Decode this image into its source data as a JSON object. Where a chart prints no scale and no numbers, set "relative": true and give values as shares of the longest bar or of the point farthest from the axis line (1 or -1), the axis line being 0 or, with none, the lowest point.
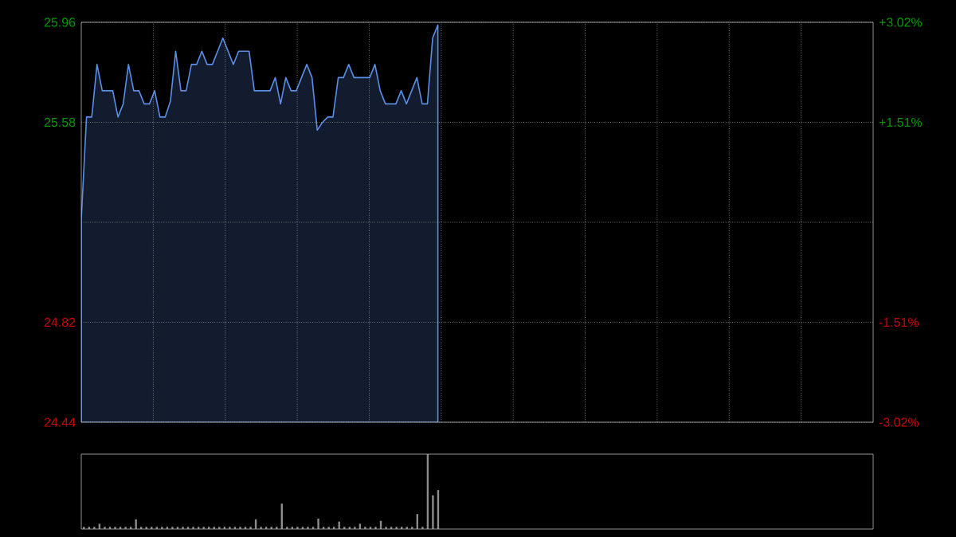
{
  "chart_data": [
    {
      "type": "area",
      "categories": [
        null,
        null,
        null,
        null,
        null,
        null,
        null,
        null,
        null,
        null,
        null,
        null,
        null,
        null,
        null,
        null,
        null,
        null,
        null,
        null,
        null,
        null,
        null,
        null,
        null,
        null,
        null,
        null,
        null,
        null,
        null,
        null,
        null,
        null,
        null,
        null,
        null,
        null,
        null,
        null,
        null,
        null,
        null,
        null,
        null,
        null,
        null,
        null,
        null,
        null,
        null,
        null,
        null,
        null,
        null,
        null,
        null,
        null,
        null,
        null,
        null,
        null,
        null,
        null,
        null,
        null,
        null,
        null,
        null,
        null,
        null,
        null,
        null,
        null,
        null,
        null,
        null,
        null,
        null,
        null,
        null,
        null,
        null,
        null,
        null,
        null,
        null,
        null,
        null,
        null,
        null,
        null,
        null,
        null,
        null,
        null,
        null,
        null,
        null,
        null,
        null,
        null,
        null,
        null,
        null,
        null,
        null,
        null,
        null,
        null,
        null,
        null,
        null,
        null,
        null,
        null,
        null,
        null,
        null,
        null,
        null,
        null,
        null,
        null,
        null,
        null,
        null,
        null,
        null,
        null,
        null,
        null,
        null,
        null,
        null,
        null,
        null,
        null,
        null,
        null,
        null,
        null,
        null,
        null,
        null,
        null,
        null,
        null,
        null,
        null,
        null,
        null
      ],
      "series": [
        {
          "color": "#5b8ee6",
          "values": [
            25.21,
            25.6,
            25.6,
            25.8,
            25.7,
            25.7,
            25.7,
            25.6,
            25.65,
            25.8,
            25.7,
            25.7,
            25.65,
            25.65,
            25.7,
            25.6,
            25.6,
            25.66,
            25.85,
            25.7,
            25.7,
            25.8,
            25.8,
            25.85,
            25.8,
            25.8,
            25.85,
            25.9,
            25.85,
            25.8,
            25.85,
            25.85,
            25.85,
            25.7,
            25.7,
            25.7,
            25.7,
            25.75,
            25.65,
            25.75,
            25.7,
            25.7,
            25.75,
            25.8,
            25.75,
            25.55,
            25.58,
            25.6,
            25.6,
            25.75,
            25.75,
            25.8,
            25.75,
            25.75,
            25.75,
            25.75,
            25.8,
            25.7,
            25.65,
            25.65,
            25.65,
            25.7,
            25.65,
            25.7,
            25.75,
            25.65,
            25.65,
            25.9,
            25.95,
            null,
            null,
            null,
            null,
            null,
            null,
            null,
            null,
            null,
            null,
            null,
            null,
            null,
            null,
            null,
            null,
            null,
            null,
            null,
            null,
            null,
            null,
            null,
            null,
            null,
            null,
            null,
            null,
            null,
            null,
            null,
            null,
            null,
            null,
            null,
            null,
            null,
            null,
            null,
            null,
            null,
            null,
            null,
            null,
            null,
            null,
            null,
            null,
            null,
            null,
            null,
            null,
            null,
            null,
            null,
            null,
            null,
            null,
            null,
            null,
            null,
            null,
            null,
            null,
            null,
            null,
            null,
            null,
            null,
            null,
            null,
            null,
            null,
            null,
            null,
            null,
            null,
            null,
            null,
            null,
            null,
            null,
            null
          ]
        }
      ],
      "ylim": [
        24.44,
        25.96
      ],
      "yticks": [
        24.44,
        24.82,
        {
          "value": 25.2,
          "label": null
        },
        25.58,
        25.96
      ],
      "y2lim": [
        -3.02,
        3.02
      ],
      "y2ticks": [
        {
          "value": -3.02,
          "label": "-3.02%"
        },
        {
          "value": -1.51,
          "label": "-1.51%"
        },
        {
          "value": 0,
          "label": null
        },
        {
          "value": 1.51,
          "label": "+1.51%"
        },
        {
          "value": 3.02,
          "label": "+3.02%"
        }
      ],
      "grid": true
    },
    {
      "type": "bar",
      "relative": true,
      "color": "#8c8c8c",
      "categories": [
        null,
        null,
        null,
        null,
        null,
        null,
        null,
        null,
        null,
        null,
        null,
        null,
        null,
        null,
        null,
        null,
        null,
        null,
        null,
        null,
        null,
        null,
        null,
        null,
        null,
        null,
        null,
        null,
        null,
        null,
        null,
        null,
        null,
        null,
        null,
        null,
        null,
        null,
        null,
        null,
        null,
        null,
        null,
        null,
        null,
        null,
        null,
        null,
        null,
        null,
        null,
        null,
        null,
        null,
        null,
        null,
        null,
        null,
        null,
        null,
        null,
        null,
        null,
        null,
        null,
        null,
        null,
        null,
        null,
        null,
        null,
        null,
        null,
        null,
        null,
        null,
        null,
        null,
        null,
        null,
        null,
        null,
        null,
        null,
        null,
        null,
        null,
        null,
        null,
        null,
        null,
        null,
        null,
        null,
        null,
        null,
        null,
        null,
        null,
        null,
        null,
        null,
        null,
        null,
        null,
        null,
        null,
        null,
        null,
        null,
        null,
        null,
        null,
        null,
        null,
        null,
        null,
        null,
        null,
        null,
        null,
        null,
        null,
        null,
        null,
        null,
        null,
        null,
        null,
        null,
        null,
        null,
        null,
        null,
        null,
        null,
        null,
        null,
        null,
        null,
        null,
        null,
        null,
        null,
        null,
        null,
        null,
        null,
        null,
        null,
        null,
        null
      ],
      "values": [
        0.03,
        0.03,
        0.03,
        0.07,
        0.03,
        0.03,
        0.03,
        0.03,
        0.03,
        0.03,
        0.13,
        0.03,
        0.03,
        0.03,
        0.03,
        0.03,
        0.03,
        0.03,
        0.03,
        0.03,
        0.03,
        0.03,
        0.03,
        0.03,
        0.03,
        0.03,
        0.03,
        0.03,
        0.03,
        0.03,
        0.03,
        0.03,
        0.03,
        0.13,
        0.03,
        0.03,
        0.03,
        0.03,
        0.34,
        0.03,
        0.03,
        0.03,
        0.03,
        0.03,
        0.03,
        0.14,
        0.03,
        0.03,
        0.03,
        0.1,
        0.03,
        0.03,
        0.03,
        0.07,
        0.03,
        0.03,
        0.03,
        0.11,
        0.03,
        0.03,
        0.03,
        0.03,
        0.03,
        0.03,
        0.2,
        0.03,
        1,
        0.45,
        0.52,
        null,
        null,
        null,
        null,
        null,
        null,
        null,
        null,
        null,
        null,
        null,
        null,
        null,
        null,
        null,
        null,
        null,
        null,
        null,
        null,
        null,
        null,
        null,
        null,
        null,
        null,
        null,
        null,
        null,
        null,
        null,
        null,
        null,
        null,
        null,
        null,
        null,
        null,
        null,
        null,
        null,
        null,
        null,
        null,
        null,
        null,
        null,
        null,
        null,
        null,
        null,
        null,
        null,
        null,
        null,
        null,
        null,
        null,
        null,
        null,
        null,
        null,
        null,
        null,
        null,
        null,
        null,
        null,
        null,
        null,
        null,
        null,
        null,
        null,
        null,
        null,
        null,
        null,
        null,
        null,
        null,
        null,
        null
      ]
    }
  ]
}
